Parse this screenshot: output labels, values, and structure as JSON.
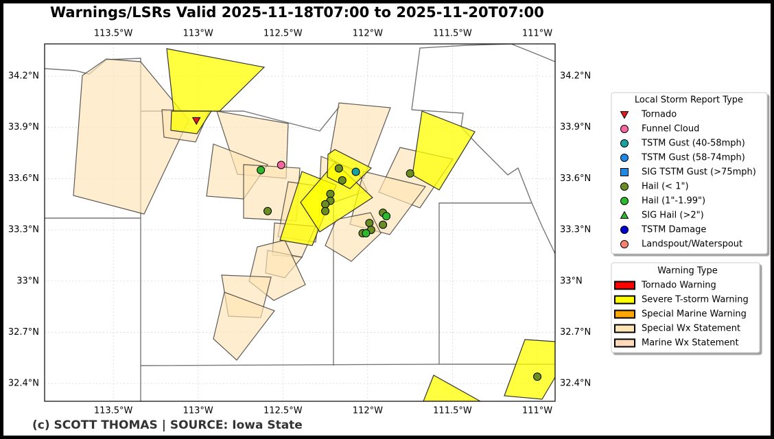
{
  "title": "Warnings/LSRs Valid 2025-11-18T07:00 to 2025-11-20T07:00",
  "footer": "(c) SCOTT THOMAS | SOURCE: Iowa State",
  "map": {
    "xlim": [
      -113.905,
      -110.895
    ],
    "ylim": [
      32.296,
      34.389
    ],
    "grid": true,
    "xticks": [
      {
        "value": -113.5,
        "label": "113.5°W"
      },
      {
        "value": -113,
        "label": "113°W"
      },
      {
        "value": -112.5,
        "label": "112.5°W"
      },
      {
        "value": -112,
        "label": "112°W"
      },
      {
        "value": -111.5,
        "label": "111.5°W"
      },
      {
        "value": -111,
        "label": "111°W"
      }
    ],
    "yticks": [
      {
        "value": 32.4,
        "label": "32.4°N"
      },
      {
        "value": 32.7,
        "label": "32.7°N"
      },
      {
        "value": 33,
        "label": "33°N"
      },
      {
        "value": 33.3,
        "label": "33.3°N"
      },
      {
        "value": 33.6,
        "label": "33.6°N"
      },
      {
        "value": 33.9,
        "label": "33.9°N"
      },
      {
        "value": 34.2,
        "label": "34.2°N"
      }
    ]
  },
  "lsr_legend": {
    "title": "Local Storm Report Type",
    "items": [
      {
        "label": "Tornado",
        "color": "#e31a1c",
        "shape": "triangle-down",
        "reports": [
          {
            "lon": -113.01,
            "lat": 33.94
          }
        ]
      },
      {
        "label": "Funnel Cloud",
        "color": "#f768a1",
        "shape": "circle",
        "reports": [
          {
            "lon": -112.51,
            "lat": 33.68
          }
        ]
      },
      {
        "label": "TSTM Gust (40-58mph)",
        "color": "#17a2a2",
        "shape": "circle",
        "reports": [
          {
            "lon": -112.07,
            "lat": 33.64
          }
        ]
      },
      {
        "label": "TSTM Gust (58-74mph)",
        "color": "#1e88e5",
        "shape": "circle",
        "reports": []
      },
      {
        "label": "SIG TSTM Gust (>75mph)",
        "color": "#1e88e5",
        "shape": "square",
        "reports": []
      },
      {
        "label": "Hail (< 1\")",
        "color": "#6b8e23",
        "shape": "circle",
        "reports": [
          {
            "lon": -112.59,
            "lat": 33.41
          },
          {
            "lon": -112.17,
            "lat": 33.66
          },
          {
            "lon": -112.15,
            "lat": 33.59
          },
          {
            "lon": -112.22,
            "lat": 33.51
          },
          {
            "lon": -112.22,
            "lat": 33.47
          },
          {
            "lon": -112.25,
            "lat": 33.45
          },
          {
            "lon": -112.25,
            "lat": 33.41
          },
          {
            "lon": -111.75,
            "lat": 33.63
          },
          {
            "lon": -111.91,
            "lat": 33.4
          },
          {
            "lon": -111.99,
            "lat": 33.34
          },
          {
            "lon": -111.91,
            "lat": 33.33
          },
          {
            "lon": -111.98,
            "lat": 33.3
          },
          {
            "lon": -112.03,
            "lat": 33.28
          },
          {
            "lon": -111.0,
            "lat": 32.44
          }
        ]
      },
      {
        "label": "Hail (1\"-1.99\")",
        "color": "#2db82d",
        "shape": "circle",
        "reports": [
          {
            "lon": -112.63,
            "lat": 33.65
          },
          {
            "lon": -111.89,
            "lat": 33.38
          },
          {
            "lon": -112.01,
            "lat": 33.28
          }
        ]
      },
      {
        "label": "SIG Hail (>2\")",
        "color": "#2db82d",
        "shape": "triangle-up",
        "reports": []
      },
      {
        "label": "TSTM Damage",
        "color": "#0000cd",
        "shape": "circle",
        "reports": []
      },
      {
        "label": "Landspout/Waterspout",
        "color": "#fa8072",
        "shape": "circle",
        "reports": []
      }
    ]
  },
  "warning_legend": {
    "title": "Warning Type",
    "items": [
      {
        "label": "Tornado Warning",
        "color": "#ff0000"
      },
      {
        "label": "Severe T-storm Warning",
        "color": "#ffff00"
      },
      {
        "label": "Special Marine Warning",
        "color": "#ffa500"
      },
      {
        "label": "Special Wx Statement",
        "color": "#ffe4b5"
      },
      {
        "label": "Marine Wx Statement",
        "color": "#ffdab9"
      }
    ]
  }
}
